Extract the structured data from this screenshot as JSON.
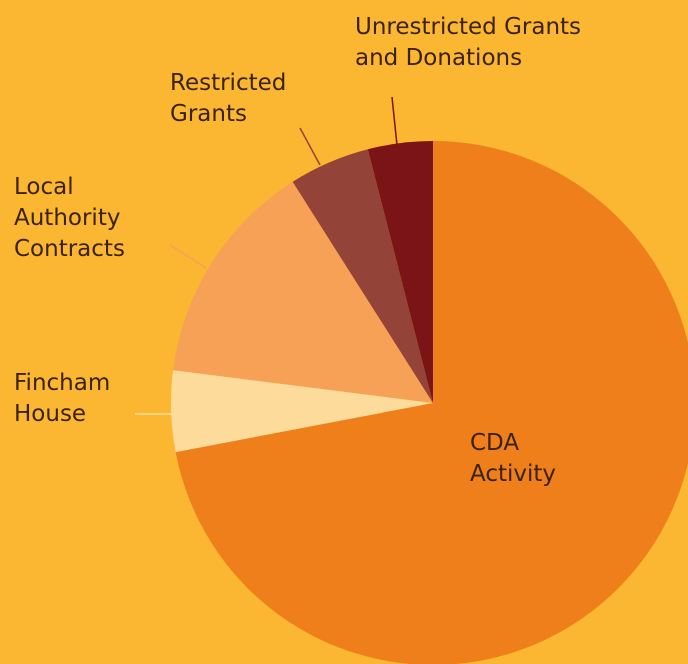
{
  "chart_data": {
    "type": "pie",
    "categories": [
      "CDA Activity",
      "Fincham House",
      "Local Authority Contracts",
      "Restricted Grants",
      "Unrestricted Grants and Donations"
    ],
    "values": [
      72,
      5,
      14,
      5,
      4
    ],
    "colors": [
      "#ee7f1b",
      "#fddc9b",
      "#f7a157",
      "#934337",
      "#7b1416"
    ],
    "background": "#fbb731"
  }
}
